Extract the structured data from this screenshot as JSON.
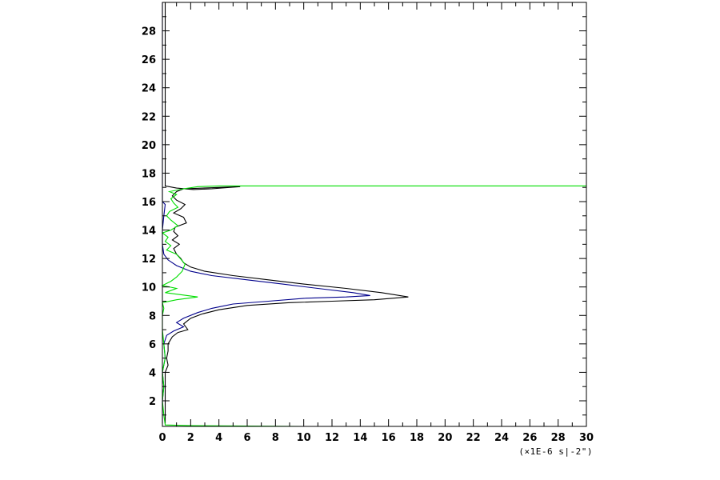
{
  "chart_data": {
    "type": "line",
    "title": "",
    "xlabel": "",
    "ylabel": "",
    "x_unit_label": "(×1E-6 s|-2\")",
    "xlim": [
      0,
      30
    ],
    "ylim": [
      0.2,
      30
    ],
    "x_ticks": [
      0,
      2,
      4,
      6,
      8,
      10,
      12,
      14,
      16,
      18,
      20,
      22,
      24,
      26,
      28,
      30
    ],
    "y_ticks": [
      2,
      4,
      6,
      8,
      10,
      12,
      14,
      16,
      18,
      20,
      22,
      24,
      26,
      28
    ],
    "grid": false,
    "legend": "none",
    "series": [
      {
        "color": "#000000",
        "points": [
          [
            0.2,
            30
          ],
          [
            0.2,
            27
          ],
          [
            0.2,
            24
          ],
          [
            0.2,
            21
          ],
          [
            0.2,
            18
          ],
          [
            0.2,
            17.1
          ],
          [
            1.0,
            16.95
          ],
          [
            2.2,
            16.85
          ],
          [
            3.5,
            16.9
          ],
          [
            4.8,
            17.0
          ],
          [
            5.5,
            17.05
          ],
          [
            1.5,
            16.9
          ],
          [
            1.0,
            16.7
          ],
          [
            0.7,
            16.4
          ],
          [
            1.0,
            16.1
          ],
          [
            1.6,
            15.8
          ],
          [
            1.3,
            15.5
          ],
          [
            0.8,
            15.2
          ],
          [
            1.5,
            14.9
          ],
          [
            1.7,
            14.5
          ],
          [
            0.9,
            14.2
          ],
          [
            0.8,
            13.9
          ],
          [
            1.1,
            13.6
          ],
          [
            0.7,
            13.3
          ],
          [
            1.2,
            13.0
          ],
          [
            0.8,
            12.7
          ],
          [
            1.0,
            12.3
          ],
          [
            1.3,
            12.0
          ],
          [
            1.5,
            11.7
          ],
          [
            2.0,
            11.4
          ],
          [
            3.0,
            11.1
          ],
          [
            5.0,
            10.8
          ],
          [
            7.5,
            10.5
          ],
          [
            10.0,
            10.2
          ],
          [
            13.0,
            9.9
          ],
          [
            15.5,
            9.6
          ],
          [
            17.4,
            9.3
          ],
          [
            15.0,
            9.1
          ],
          [
            12.0,
            9.0
          ],
          [
            9.0,
            8.9
          ],
          [
            6.0,
            8.7
          ],
          [
            4.0,
            8.4
          ],
          [
            2.8,
            8.1
          ],
          [
            2.0,
            7.8
          ],
          [
            1.5,
            7.4
          ],
          [
            1.8,
            7.0
          ],
          [
            1.1,
            6.8
          ],
          [
            0.7,
            6.5
          ],
          [
            0.4,
            6.0
          ],
          [
            0.4,
            5.5
          ],
          [
            0.3,
            5.0
          ],
          [
            0.4,
            4.5
          ],
          [
            0.2,
            4.0
          ],
          [
            0.2,
            3.0
          ],
          [
            0.2,
            2.0
          ],
          [
            0.2,
            1.0
          ],
          [
            0.2,
            0.4
          ]
        ]
      },
      {
        "color": "#00008b",
        "points": [
          [
            0.0,
            30
          ],
          [
            0.0,
            27
          ],
          [
            0.0,
            24
          ],
          [
            0.0,
            21
          ],
          [
            0.0,
            18
          ],
          [
            0.0,
            16.0
          ],
          [
            0.2,
            15.8
          ],
          [
            0.1,
            15.0
          ],
          [
            0.0,
            14.0
          ],
          [
            0.0,
            13.0
          ],
          [
            0.1,
            12.3
          ],
          [
            0.4,
            11.9
          ],
          [
            1.0,
            11.5
          ],
          [
            2.0,
            11.1
          ],
          [
            3.5,
            10.8
          ],
          [
            6.0,
            10.5
          ],
          [
            8.5,
            10.2
          ],
          [
            11.0,
            9.9
          ],
          [
            13.5,
            9.6
          ],
          [
            14.7,
            9.4
          ],
          [
            13.0,
            9.3
          ],
          [
            10.0,
            9.2
          ],
          [
            7.5,
            9.0
          ],
          [
            5.0,
            8.8
          ],
          [
            3.5,
            8.5
          ],
          [
            2.5,
            8.2
          ],
          [
            1.5,
            7.8
          ],
          [
            1.0,
            7.5
          ],
          [
            1.5,
            7.2
          ],
          [
            0.8,
            6.9
          ],
          [
            0.3,
            6.6
          ],
          [
            0.1,
            6.0
          ],
          [
            0.2,
            5.0
          ],
          [
            0.0,
            4.0
          ],
          [
            0.1,
            3.0
          ],
          [
            0.0,
            2.0
          ],
          [
            0.0,
            1.0
          ],
          [
            0.0,
            0.4
          ]
        ]
      },
      {
        "color": "#00dd00",
        "points": [
          [
            30,
            17.1
          ],
          [
            25,
            17.1
          ],
          [
            20,
            17.1
          ],
          [
            15,
            17.1
          ],
          [
            12,
            17.1
          ],
          [
            10,
            17.1
          ],
          [
            8,
            17.1
          ],
          [
            6,
            17.1
          ],
          [
            4,
            17.1
          ],
          [
            2.5,
            17.05
          ],
          [
            1.5,
            16.9
          ],
          [
            0.5,
            16.7
          ],
          [
            1.0,
            16.5
          ],
          [
            0.6,
            16.2
          ],
          [
            0.8,
            15.9
          ],
          [
            1.1,
            15.6
          ],
          [
            0.5,
            15.3
          ],
          [
            0.3,
            15.0
          ],
          [
            0.6,
            14.7
          ],
          [
            1.1,
            14.3
          ],
          [
            0.6,
            14.0
          ],
          [
            0.0,
            13.8
          ],
          [
            0.4,
            13.5
          ],
          [
            0.2,
            13.2
          ],
          [
            0.6,
            12.9
          ],
          [
            0.3,
            12.6
          ],
          [
            1.0,
            12.3
          ],
          [
            1.6,
            11.6
          ],
          [
            1.4,
            11.1
          ],
          [
            1.0,
            10.7
          ],
          [
            0.6,
            10.4
          ],
          [
            0.0,
            10.1
          ],
          [
            1.0,
            9.9
          ],
          [
            0.2,
            9.6
          ],
          [
            2.5,
            9.3
          ],
          [
            1.0,
            9.1
          ],
          [
            0.0,
            8.9
          ],
          [
            0.1,
            8.5
          ],
          [
            0.0,
            8.0
          ],
          [
            0.0,
            7.0
          ],
          [
            0.1,
            6.0
          ],
          [
            0.2,
            5.0
          ],
          [
            0.0,
            4.0
          ],
          [
            0.1,
            3.0
          ],
          [
            0.0,
            2.0
          ],
          [
            0.1,
            1.0
          ],
          [
            0.2,
            0.3
          ],
          [
            2,
            0.25
          ],
          [
            10,
            0.2
          ],
          [
            20,
            0.2
          ],
          [
            30,
            0.2
          ]
        ]
      }
    ]
  }
}
